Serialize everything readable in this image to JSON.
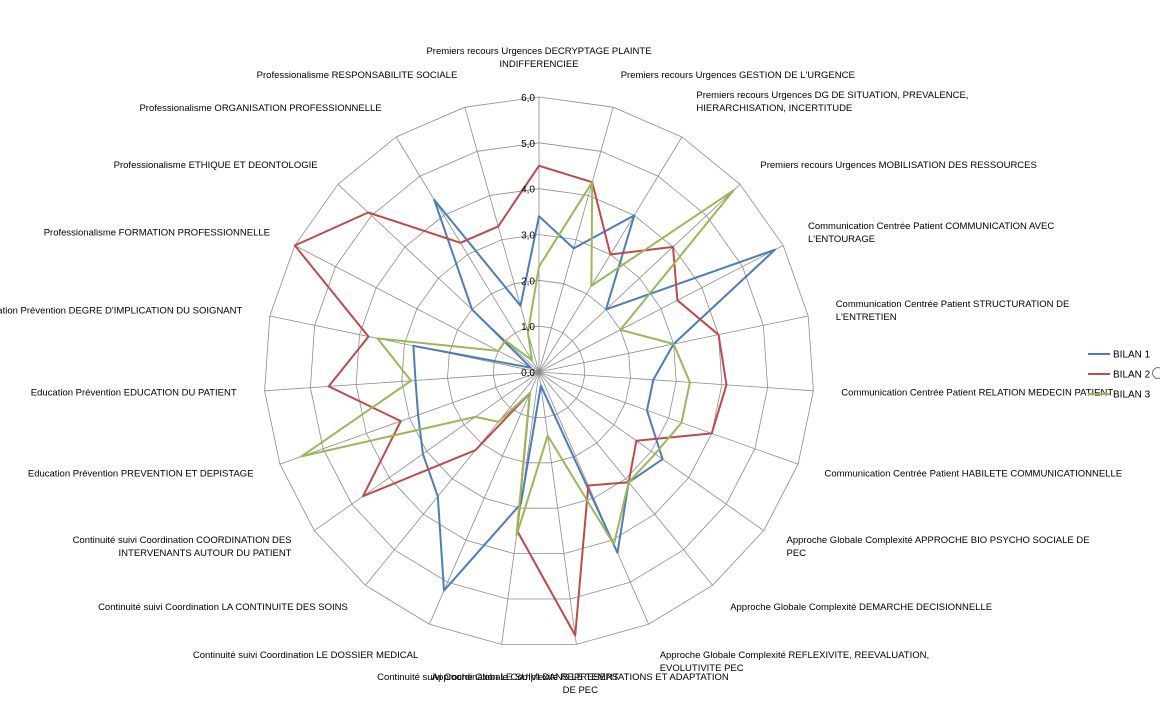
{
  "chart_data": {
    "type": "radar",
    "title": "",
    "rlim": [
      0,
      6
    ],
    "ticks": [
      "0,0",
      "1,0",
      "2,0",
      "3,0",
      "4,0",
      "5,0",
      "6,0"
    ],
    "grid": true,
    "legend_position": "right",
    "categories": [
      "Premiers recours Urgences DECRYPTAGE PLAINTE INDIFFERENCIEE",
      "Premiers recours Urgences GESTION DE L'URGENCE",
      "Premiers recours Urgences DG DE SITUATION, PREVALENCE, HIERARCHISATION, INCERTITUDE",
      "Premiers recours Urgences MOBILISATION DES RESSOURCES",
      "Communication Centrée Patient  COMMUNICATION AVEC L'ENTOURAGE",
      "Communication Centrée Patient  STRUCTURATION DE L'ENTRETIEN",
      "Communication Centrée Patient  RELATION MEDECIN PATIENT",
      "Communication Centrée Patient  HABILETE COMMUNICATIONNELLE",
      "Approche Globale Complexité APPROCHE BIO PSYCHO SOCIALE DE PEC",
      "Approche Globale Complexité DEMARCHE DECISIONNELLE",
      "Approche Globale Complexité REFLEXIVITE, REEVALUATION, EVOLUTIVITE PEC",
      "Approche Globale Complexité REPRESENTATIONS ET ADAPTATION DE PEC",
      "Continuité suivi Coordination LE SUIVI DANS LE TEMPS",
      "Continuité suivi Coordination LE DOSSIER MEDICAL",
      "Continuité suivi Coordination LA CONTINUITE DES SOINS",
      "Continuité suivi Coordination COORDINATION DES INTERVENANTS AUTOUR DU PATIENT",
      "Education Prévention PREVENTION ET DEPISTAGE",
      "Education Prévention EDUCATION DU PATIENT",
      "Education Prévention DEGRE D'IMPLICATION DU SOIGNANT",
      "Professionalisme FORMATION PROFESSIONNELLE",
      "Professionalisme ETHIQUE ET DEONTOLOGIE",
      "Professionalisme ORGANISATION PROFESSIONNELLE",
      "Professionalisme RESPONSABILITE SOCIALE"
    ],
    "series": [
      {
        "name": "BILAN 1",
        "color": "#4a7ebb",
        "values": [
          3.4,
          2.8,
          4.0,
          2.0,
          5.8,
          3.0,
          2.5,
          2.5,
          3.3,
          3.1,
          4.3,
          0.3,
          2.9,
          5.2,
          3.5,
          3.1,
          2.8,
          2.7,
          2.8,
          0.2,
          2.0,
          4.4,
          1.5
        ]
      },
      {
        "name": "BILAN 2",
        "color": "#be4b48",
        "values": [
          4.5,
          4.3,
          3.0,
          4.0,
          3.4,
          4.0,
          4.1,
          4.0,
          2.6,
          3.1,
          2.7,
          5.8,
          3.5,
          0.5,
          2.2,
          4.7,
          3.2,
          4.6,
          3.8,
          6.0,
          5.1,
          3.3,
          3.3
        ]
      },
      {
        "name": "BILAN 3",
        "color": "#98b954",
        "values": [
          2.3,
          4.3,
          2.2,
          5.8,
          2.0,
          3.0,
          3.3,
          3.3,
          3.1,
          3.1,
          4.1,
          1.4,
          3.6,
          0.5,
          1.4,
          1.7,
          5.5,
          2.8,
          3.6,
          1.0,
          1.0,
          0.3,
          0.9
        ]
      }
    ]
  }
}
